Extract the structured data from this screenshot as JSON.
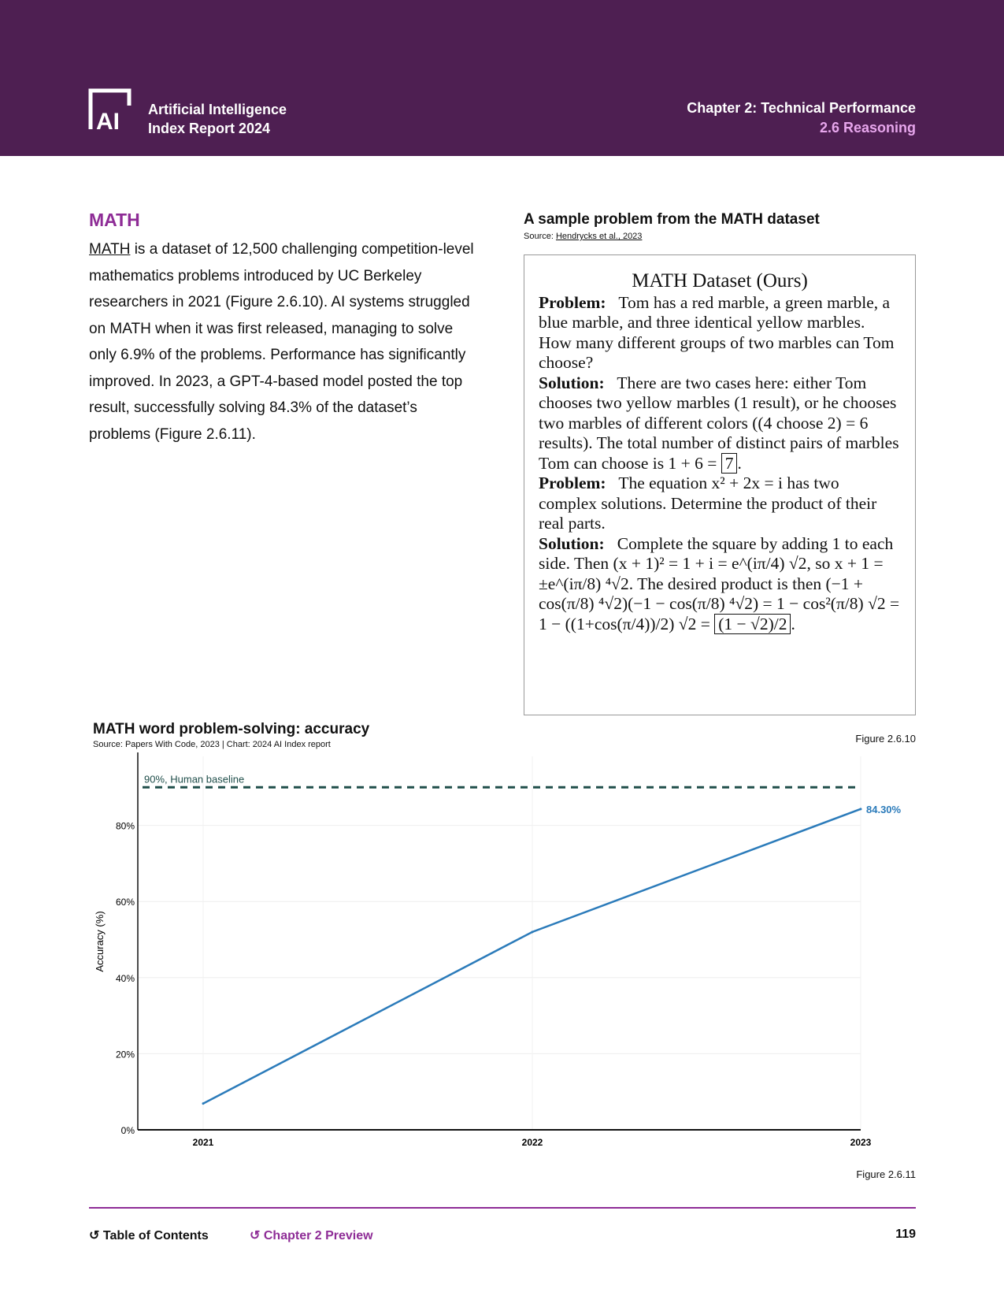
{
  "header": {
    "brand_line1": "Artificial Intelligence",
    "brand_line2": "Index Report 2024",
    "chapter": "Chapter 2: Technical Performance",
    "section": "2.6 Reasoning",
    "logo_text": "AI",
    "brand_color": "#4e1f52"
  },
  "main": {
    "heading": "MATH",
    "link": "MATH",
    "paragraph": " is a dataset of 12,500 challenging competition-level mathematics problems introduced by UC Berkeley researchers in 2021 (Figure 2.6.10). AI systems struggled on MATH when it was first released, managing to solve only 6.9% of the problems. Performance has significantly improved. In 2023, a GPT-4-based model posted the top result, successfully solving 84.3% of the dataset’s problems (Figure 2.6.11)."
  },
  "sample": {
    "title": "A sample problem from the MATH dataset",
    "source_prefix": "Source: ",
    "source_link": "Hendrycks et al., 2023",
    "figure": "Figure 2.6.10",
    "box_title": "MATH Dataset (Ours)",
    "p1_label": "Problem:",
    "p1": "Tom has a red marble, a green marble, a blue marble, and three identical yellow marbles. How many different groups of two marbles can Tom choose?",
    "s1_label": "Solution:",
    "s1a": "There are two cases here: either Tom chooses two yellow marbles (1 result), or he chooses two marbles of different colors ((4 choose 2) = 6 results). The total number of distinct pairs of marbles Tom can choose is 1 + 6 = ",
    "s1_answer": "7",
    "s1b": ".",
    "p2_label": "Problem:",
    "p2": "The equation x² + 2x = i has two complex solutions. Determine the product of their real parts.",
    "s2_label": "Solution:",
    "s2a": "Complete the square by adding 1 to each side. Then (x + 1)² = 1 + i = e^(iπ/4) √2, so x + 1 = ±e^(iπ/8) ⁴√2. The desired product is then (−1 + cos(π/8) ⁴√2)(−1 − cos(π/8) ⁴√2) = 1 − cos²(π/8) √2 = 1 − ((1+cos(π/4))/2) √2 = ",
    "s2_answer": "(1 − √2)/2",
    "s2b": "."
  },
  "chart": {
    "figure": "Figure 2.6.11"
  },
  "chart_data": {
    "type": "line",
    "title": "MATH word problem-solving: accuracy",
    "subtitle": "Source: Papers With Code, 2023 | Chart: 2024 AI Index report",
    "xlabel": "",
    "ylabel": "Accuracy (%)",
    "categories": [
      "2021",
      "2022",
      "2023"
    ],
    "values": [
      6.9,
      52,
      84.3
    ],
    "ylim": [
      0,
      100
    ],
    "yticks": [
      "0%",
      "20%",
      "40%",
      "60%",
      "80%"
    ],
    "end_label": "84.30%",
    "baseline": {
      "value": 90,
      "label": "90%, Human baseline",
      "color": "#1f4e4a"
    },
    "line_color": "#2b7bba",
    "grid": true
  },
  "footer": {
    "toc": "Table of Contents",
    "preview": "Chapter 2 Preview",
    "page": "119",
    "accent": "#8e2c96"
  }
}
